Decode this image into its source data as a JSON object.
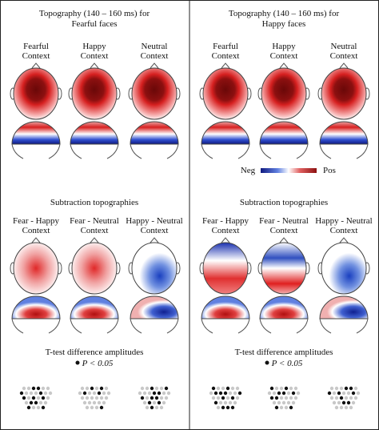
{
  "panels": [
    {
      "title": [
        "Topography (140 – 160 ms) for",
        "Fearful faces"
      ],
      "conditions": [
        [
          "Fearful",
          "Context"
        ],
        [
          "Happy",
          "Context"
        ],
        [
          "Neutral",
          "Context"
        ]
      ],
      "subtraction_title": "Subtraction topographies",
      "subtractions": [
        [
          "Fear - Happy",
          "Context"
        ],
        [
          "Fear - Neutral",
          "Context"
        ],
        [
          "Happy - Neutral",
          "Context"
        ]
      ],
      "ttest_title": "T-test difference amplitudes",
      "ttest_legend": "P < 0.05"
    },
    {
      "title": [
        "Topography (140 – 160 ms) for",
        "Happy faces"
      ],
      "conditions": [
        [
          "Fearful",
          "Context"
        ],
        [
          "Happy",
          "Context"
        ],
        [
          "Neutral",
          "Context"
        ]
      ],
      "subtraction_title": "Subtraction topographies",
      "subtractions": [
        [
          "Fear - Happy",
          "Context"
        ],
        [
          "Fear - Neutral",
          "Context"
        ],
        [
          "Happy - Neutral",
          "Context"
        ]
      ],
      "ttest_title": "T-test difference amplitudes",
      "ttest_legend": "P < 0.05"
    }
  ],
  "colorbar": {
    "low": "Neg",
    "high": "Pos"
  }
}
